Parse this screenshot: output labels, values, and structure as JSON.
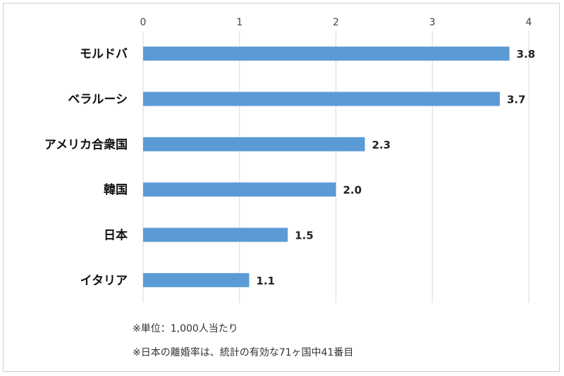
{
  "chart_data": {
    "type": "bar",
    "orientation": "horizontal",
    "title": "",
    "xlabel": "",
    "ylabel": "",
    "categories": [
      "モルドバ",
      "ベラルーシ",
      "アメリカ合衆国",
      "韓国",
      "日本",
      "イタリア"
    ],
    "values": [
      3.8,
      3.7,
      2.3,
      2.0,
      1.5,
      1.1
    ],
    "data_labels": [
      "3.8",
      "3.7",
      "2.3",
      "2.0",
      "1.5",
      "1.1"
    ],
    "xlim": [
      0,
      4
    ],
    "x_ticks": [
      "0",
      "1",
      "2",
      "3",
      "4"
    ],
    "x_axis_position": "top",
    "grid": true,
    "legend": "none",
    "bar_color": "#5b9bd5",
    "grid_color": "#d9d9d9"
  },
  "notes": [
    "※単位：1,000人当たり",
    "※日本の離婚率は、統計の有効な71ヶ国中41番目"
  ]
}
